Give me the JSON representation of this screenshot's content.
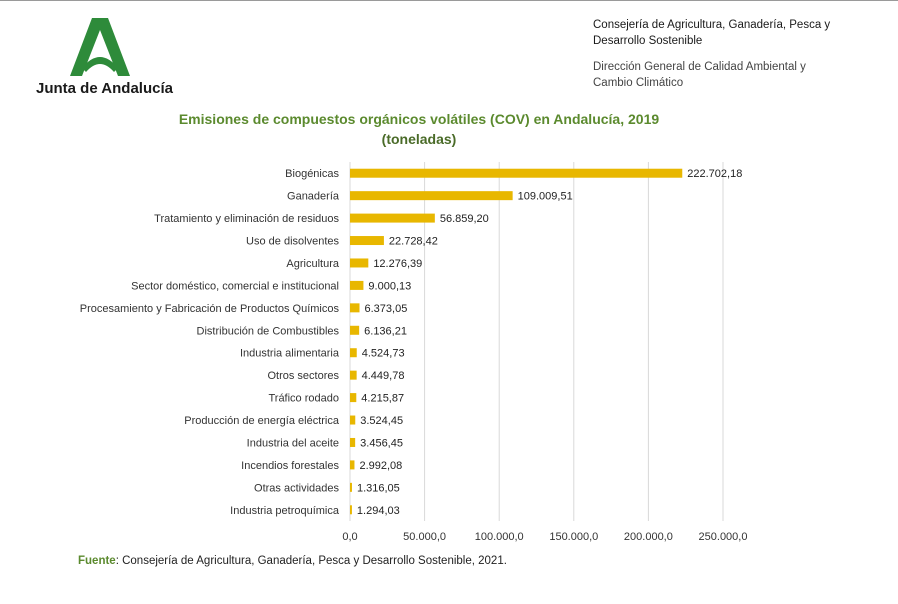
{
  "header": {
    "org_name": "Junta de Andalucía",
    "department_line1": "Consejería de Agricultura, Ganadería, Pesca y",
    "department_line2": "Desarrollo Sostenible",
    "directorate_line1": "Dirección General de Calidad Ambiental y",
    "directorate_line2": "Cambio Climático",
    "brand_color": "#2e8b3a"
  },
  "chart_data": {
    "type": "bar",
    "orientation": "horizontal",
    "title": "Emisiones de compuestos orgánicos volátiles (COV) en Andalucía, 2019",
    "subtitle": "(toneladas)",
    "categories": [
      "Biogénicas",
      "Ganadería",
      "Tratamiento y eliminación de residuos",
      "Uso de disolventes",
      "Agricultura",
      "Sector doméstico, comercial e institucional",
      "Procesamiento y Fabricación de Productos Químicos",
      "Distribución de Combustibles",
      "Industria alimentaria",
      "Otros sectores",
      "Tráfico rodado",
      "Producción de energía eléctrica",
      "Industria del aceite",
      "Incendios forestales",
      "Otras actividades",
      "Industria petroquímica"
    ],
    "values": [
      222702.18,
      109009.51,
      56859.2,
      22728.42,
      12276.39,
      9000.13,
      6373.05,
      6136.21,
      4524.73,
      4449.78,
      4215.87,
      3524.45,
      3456.45,
      2992.08,
      1316.05,
      1294.03
    ],
    "value_labels": [
      "222.702,18",
      "109.009,51",
      "56.859,20",
      "22.728,42",
      "12.276,39",
      "9.000,13",
      "6.373,05",
      "6.136,21",
      "4.524,73",
      "4.449,78",
      "4.215,87",
      "3.524,45",
      "3.456,45",
      "2.992,08",
      "1.316,05",
      "1.294,03"
    ],
    "xlim": [
      0,
      250000
    ],
    "x_ticks": [
      0,
      50000,
      100000,
      150000,
      200000,
      250000
    ],
    "x_tick_labels": [
      "0,0",
      "50.000,0",
      "100.000,0",
      "150.000,0",
      "200.000,0",
      "250.000,0"
    ],
    "grid": true,
    "bar_color": "#e8b700",
    "title_color": "#5b8a2e"
  },
  "footer": {
    "source_label": "Fuente",
    "source_text": ": Consejería de Agricultura, Ganadería, Pesca y Desarrollo Sostenible, 2021."
  }
}
